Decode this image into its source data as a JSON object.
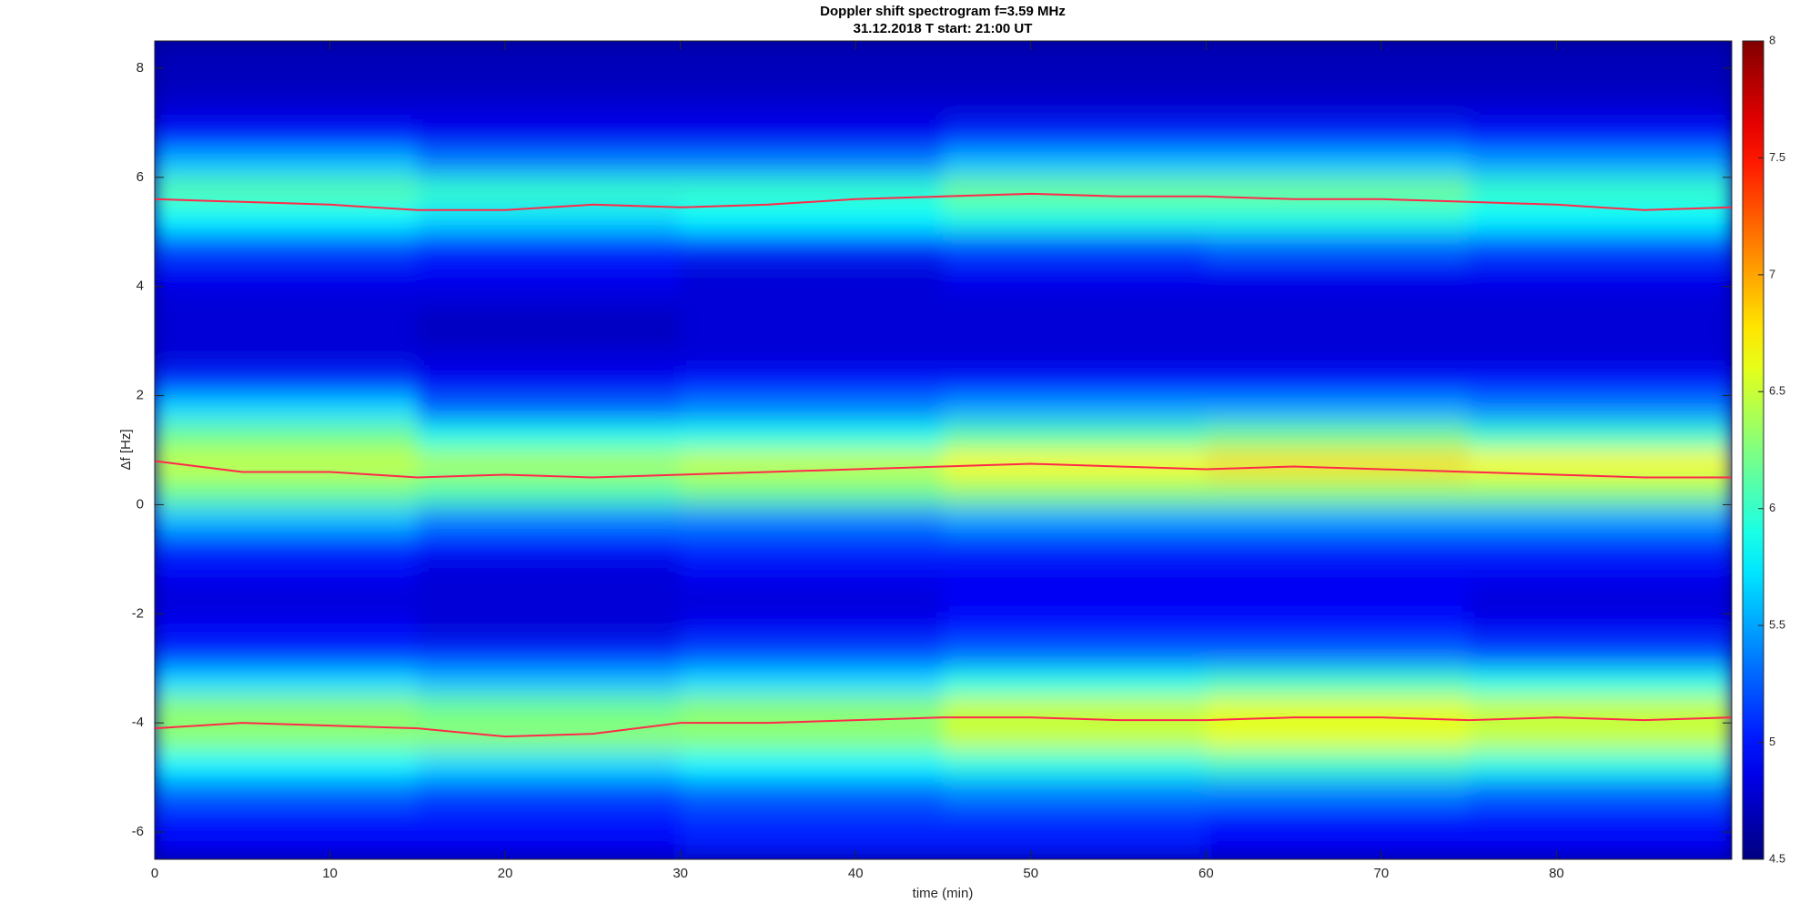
{
  "chart_data": {
    "type": "heatmap",
    "title": "Doppler shift spectrogram f=3.59 MHz",
    "subtitle": "31.12.2018   T start: 21:00 UT",
    "xlabel": "time (min)",
    "ylabel": "Δf [Hz]",
    "xlim": [
      0,
      90
    ],
    "xticks": [
      0,
      10,
      20,
      30,
      40,
      50,
      60,
      70,
      80
    ],
    "ylim": [
      -6.5,
      8.5
    ],
    "yticks": [
      -6,
      -4,
      -2,
      0,
      2,
      4,
      6,
      8
    ],
    "colormap": "jet",
    "clim": [
      4.5,
      8
    ],
    "cticks": [
      4.5,
      5,
      5.5,
      6,
      6.5,
      7,
      7.5,
      8
    ],
    "x_bins": [
      0,
      15,
      30,
      45,
      60,
      75,
      90
    ],
    "y_bins": [
      -6.5,
      -6,
      -5.5,
      -5,
      -4.5,
      -4,
      -3.5,
      -3,
      -2.5,
      -2,
      -1.5,
      -1,
      -0.5,
      0,
      0.5,
      1,
      1.5,
      2,
      2.5,
      3,
      3.5,
      4,
      4.5,
      5,
      5.5,
      6,
      6.5,
      7,
      7.5,
      8,
      8.5
    ],
    "z": [
      [
        4.9,
        4.9,
        5.0,
        5.0,
        4.9,
        4.9
      ],
      [
        5.0,
        5.0,
        5.1,
        5.1,
        5.0,
        5.0
      ],
      [
        5.3,
        5.2,
        5.3,
        5.4,
        5.4,
        5.3
      ],
      [
        5.8,
        5.7,
        5.8,
        5.9,
        6.0,
        5.9
      ],
      [
        6.3,
        6.3,
        6.3,
        6.5,
        6.6,
        6.5
      ],
      [
        6.3,
        6.2,
        6.3,
        6.5,
        6.6,
        6.5
      ],
      [
        5.7,
        5.6,
        5.7,
        5.9,
        6.0,
        5.9
      ],
      [
        5.1,
        5.1,
        5.2,
        5.3,
        5.3,
        5.2
      ],
      [
        4.9,
        4.8,
        4.9,
        5.0,
        5.0,
        4.9
      ],
      [
        4.8,
        4.8,
        4.8,
        4.9,
        4.9,
        4.8
      ],
      [
        4.9,
        4.8,
        4.9,
        4.9,
        4.9,
        4.9
      ],
      [
        5.1,
        5.0,
        5.1,
        5.1,
        5.1,
        5.1
      ],
      [
        5.6,
        5.4,
        5.4,
        5.5,
        5.5,
        5.5
      ],
      [
        6.2,
        6.1,
        6.2,
        6.3,
        6.3,
        6.3
      ],
      [
        6.5,
        6.4,
        6.5,
        6.7,
        6.8,
        6.7
      ],
      [
        6.2,
        5.9,
        5.9,
        6.1,
        6.2,
        6.0
      ],
      [
        5.7,
        5.3,
        5.4,
        5.5,
        5.5,
        5.4
      ],
      [
        5.1,
        4.9,
        5.0,
        5.0,
        5.0,
        5.0
      ],
      [
        4.8,
        4.8,
        4.8,
        4.8,
        4.8,
        4.8
      ],
      [
        4.8,
        4.7,
        4.8,
        4.8,
        4.8,
        4.8
      ],
      [
        4.8,
        4.8,
        4.8,
        4.8,
        4.8,
        4.8
      ],
      [
        4.9,
        4.9,
        4.8,
        4.9,
        4.9,
        4.9
      ],
      [
        5.2,
        5.1,
        5.1,
        5.2,
        5.3,
        5.2
      ],
      [
        5.8,
        5.7,
        5.8,
        5.9,
        5.9,
        5.8
      ],
      [
        6.1,
        6.0,
        6.0,
        6.2,
        6.2,
        6.0
      ],
      [
        5.6,
        5.4,
        5.4,
        5.6,
        5.6,
        5.5
      ],
      [
        5.0,
        4.9,
        4.9,
        5.1,
        5.1,
        5.0
      ],
      [
        4.8,
        4.8,
        4.8,
        4.8,
        4.8,
        4.8
      ],
      [
        4.7,
        4.7,
        4.7,
        4.7,
        4.7,
        4.7
      ],
      [
        4.7,
        4.7,
        4.7,
        4.7,
        4.7,
        4.7
      ]
    ],
    "series": [
      {
        "color": "#ff2a4a",
        "x": [
          0,
          5,
          10,
          15,
          20,
          25,
          30,
          35,
          40,
          45,
          50,
          55,
          60,
          65,
          70,
          75,
          80,
          85,
          90
        ],
        "values": [
          5.6,
          5.55,
          5.5,
          5.4,
          5.4,
          5.5,
          5.45,
          5.5,
          5.6,
          5.65,
          5.7,
          5.65,
          5.65,
          5.6,
          5.6,
          5.55,
          5.5,
          5.4,
          5.45
        ]
      },
      {
        "color": "#ff2a4a",
        "x": [
          0,
          5,
          10,
          15,
          20,
          25,
          30,
          35,
          40,
          45,
          50,
          55,
          60,
          65,
          70,
          75,
          80,
          85,
          90
        ],
        "values": [
          0.8,
          0.6,
          0.6,
          0.5,
          0.55,
          0.5,
          0.55,
          0.6,
          0.65,
          0.7,
          0.75,
          0.7,
          0.65,
          0.7,
          0.65,
          0.6,
          0.55,
          0.5,
          0.5
        ]
      },
      {
        "color": "#ff2a4a",
        "x": [
          0,
          5,
          10,
          15,
          20,
          25,
          30,
          35,
          40,
          45,
          50,
          55,
          60,
          65,
          70,
          75,
          80,
          85,
          90
        ],
        "values": [
          -4.1,
          -4.0,
          -4.05,
          -4.1,
          -4.25,
          -4.2,
          -4.0,
          -4.0,
          -3.95,
          -3.9,
          -3.9,
          -3.95,
          -3.95,
          -3.9,
          -3.9,
          -3.95,
          -3.9,
          -3.95,
          -3.9
        ]
      }
    ]
  }
}
